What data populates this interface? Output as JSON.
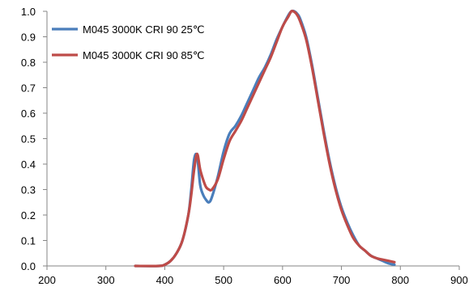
{
  "chart_data": {
    "type": "line",
    "title": "",
    "xlabel": "",
    "ylabel": "",
    "xlim": [
      200,
      900
    ],
    "ylim": [
      0.0,
      1.0
    ],
    "x_ticks": [
      "200",
      "300",
      "400",
      "500",
      "600",
      "700",
      "800",
      "900"
    ],
    "y_ticks": [
      "0.0",
      "0.1",
      "0.2",
      "0.3",
      "0.4",
      "0.5",
      "0.6",
      "0.7",
      "0.8",
      "0.9",
      "1.0"
    ],
    "grid": "none",
    "legend_position": "top-left",
    "series": [
      {
        "name": "M045 3000K CRI 90 25℃",
        "color": "#4a7ebb",
        "x": [
          350,
          390,
          400,
          410,
          420,
          430,
          440,
          445,
          450,
          455,
          460,
          465,
          470,
          475,
          480,
          490,
          500,
          510,
          520,
          530,
          540,
          550,
          560,
          570,
          580,
          590,
          600,
          610,
          615,
          620,
          625,
          630,
          640,
          650,
          660,
          670,
          680,
          690,
          700,
          710,
          720,
          730,
          740,
          750,
          760,
          770,
          780,
          790
        ],
        "y": [
          0.0,
          0.0,
          0.005,
          0.02,
          0.05,
          0.1,
          0.2,
          0.3,
          0.42,
          0.43,
          0.32,
          0.28,
          0.26,
          0.25,
          0.27,
          0.35,
          0.45,
          0.52,
          0.55,
          0.59,
          0.64,
          0.69,
          0.74,
          0.78,
          0.83,
          0.89,
          0.94,
          0.985,
          1.0,
          1.0,
          0.99,
          0.97,
          0.9,
          0.79,
          0.66,
          0.53,
          0.41,
          0.31,
          0.23,
          0.17,
          0.12,
          0.08,
          0.06,
          0.04,
          0.03,
          0.02,
          0.01,
          0.005
        ]
      },
      {
        "name": "M045 3000K CRI 90 85℃",
        "color": "#be4b48",
        "x": [
          350,
          390,
          400,
          410,
          420,
          430,
          440,
          445,
          450,
          455,
          460,
          465,
          470,
          475,
          480,
          490,
          500,
          510,
          520,
          530,
          540,
          550,
          560,
          570,
          580,
          590,
          600,
          610,
          615,
          620,
          625,
          630,
          640,
          650,
          660,
          670,
          680,
          690,
          700,
          710,
          720,
          730,
          740,
          750,
          760,
          770,
          780,
          790
        ],
        "y": [
          0.0,
          0.0,
          0.005,
          0.02,
          0.05,
          0.1,
          0.2,
          0.28,
          0.38,
          0.44,
          0.38,
          0.34,
          0.31,
          0.3,
          0.3,
          0.34,
          0.42,
          0.49,
          0.53,
          0.57,
          0.62,
          0.67,
          0.72,
          0.77,
          0.82,
          0.88,
          0.94,
          0.98,
          1.0,
          0.998,
          0.985,
          0.96,
          0.89,
          0.78,
          0.65,
          0.52,
          0.4,
          0.3,
          0.22,
          0.16,
          0.11,
          0.08,
          0.06,
          0.04,
          0.03,
          0.025,
          0.02,
          0.015
        ]
      }
    ]
  }
}
